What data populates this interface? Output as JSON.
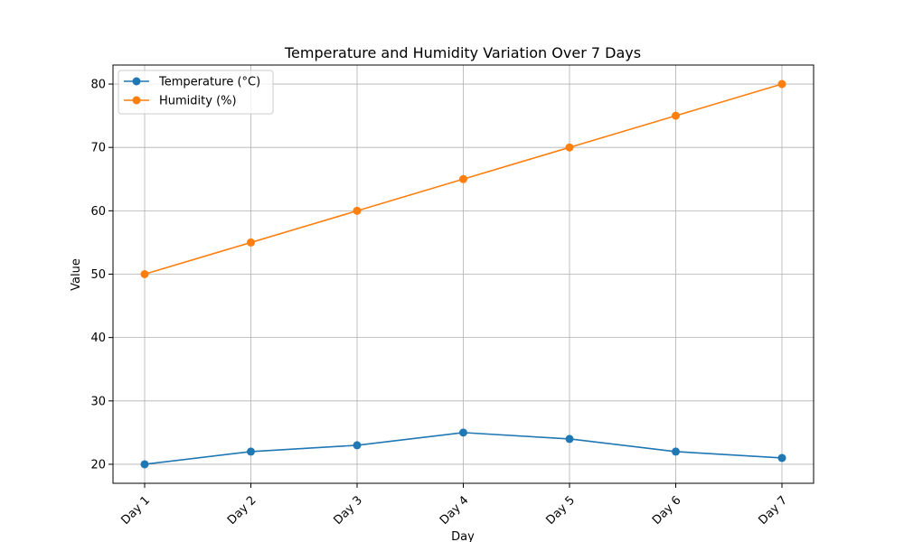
{
  "chart_data": {
    "type": "line",
    "title": "Temperature and Humidity Variation Over 7 Days",
    "xlabel": "Day",
    "ylabel": "Value",
    "categories": [
      "Day 1",
      "Day 2",
      "Day 3",
      "Day 4",
      "Day 5",
      "Day 6",
      "Day 7"
    ],
    "ylim": [
      17,
      83
    ],
    "yticks": [
      20,
      30,
      40,
      50,
      60,
      70,
      80
    ],
    "grid": true,
    "legend_position": "top-left",
    "series": [
      {
        "name": "Temperature (°C)",
        "color": "#1f77b4",
        "marker": "circle",
        "values": [
          20,
          22,
          23,
          25,
          24,
          22,
          21
        ]
      },
      {
        "name": "Humidity (%)",
        "color": "#ff7f0e",
        "marker": "circle",
        "values": [
          50,
          55,
          60,
          65,
          70,
          75,
          80
        ]
      }
    ]
  }
}
